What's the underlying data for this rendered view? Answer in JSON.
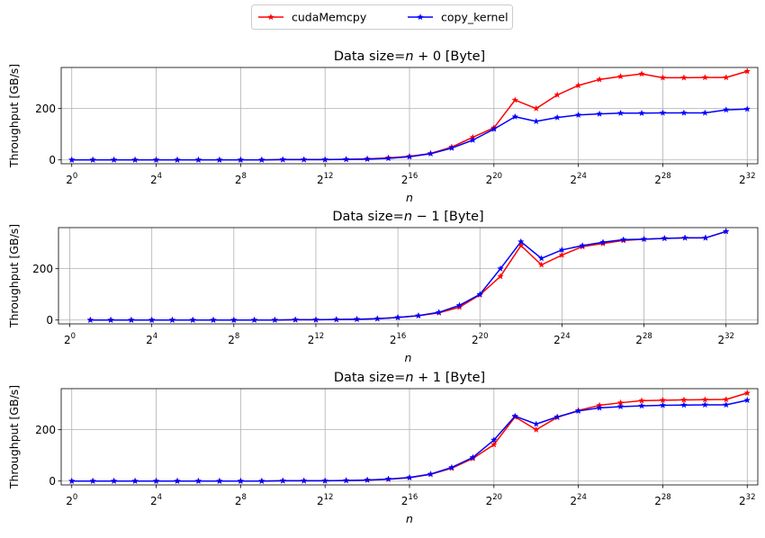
{
  "legend": {
    "placement": "top-center",
    "entries": [
      {
        "label": "cudaMemcpy",
        "color": "#ff0000",
        "marker": "star"
      },
      {
        "label": "copy_kernel",
        "color": "#0000ff",
        "marker": "star"
      }
    ]
  },
  "chart_data": [
    {
      "type": "line",
      "title": "Data size=n + 0 [Byte]",
      "title_parts": {
        "prefix": "Data size=",
        "var": "n",
        "suffix": " + 0 [Byte]"
      },
      "xlabel": "n",
      "ylabel": "Throughput [GB/s]",
      "x_scale": "log2",
      "x_exponent_range": [
        -0.5,
        32.5
      ],
      "ylim": [
        -15,
        360
      ],
      "grid": true,
      "x_tick_exponents": [
        0,
        4,
        8,
        12,
        16,
        20,
        24,
        28,
        32
      ],
      "x_tick_labels": [
        "2^0",
        "2^4",
        "2^8",
        "2^12",
        "2^16",
        "2^20",
        "2^24",
        "2^28",
        "2^32"
      ],
      "y_ticks": [
        0,
        200
      ],
      "x_exponents": [
        0,
        1,
        2,
        3,
        4,
        5,
        6,
        7,
        8,
        9,
        10,
        11,
        12,
        13,
        14,
        15,
        16,
        17,
        18,
        19,
        20,
        21,
        22,
        23,
        24,
        25,
        26,
        27,
        28,
        29,
        30,
        31,
        32
      ],
      "series": [
        {
          "name": "cudaMemcpy",
          "color": "#ff0000",
          "values": [
            0,
            0,
            0,
            0,
            0,
            0,
            0,
            0,
            0,
            0,
            1,
            1,
            1,
            2,
            4,
            8,
            14,
            25,
            50,
            88,
            125,
            233,
            200,
            253,
            290,
            313,
            325,
            335,
            320,
            320,
            321,
            321,
            345
          ]
        },
        {
          "name": "copy_kernel",
          "color": "#0000ff",
          "values": [
            0,
            0,
            0,
            0,
            0,
            0,
            0,
            0,
            0,
            0,
            1,
            1,
            1,
            2,
            3,
            6,
            12,
            24,
            46,
            77,
            120,
            168,
            150,
            165,
            175,
            179,
            182,
            182,
            183,
            183,
            183,
            195,
            198
          ]
        }
      ]
    },
    {
      "type": "line",
      "title": "Data size=n − 1 [Byte]",
      "title_parts": {
        "prefix": "Data size=",
        "var": "n",
        "suffix": " − 1 [Byte]"
      },
      "xlabel": "n",
      "ylabel": "Throughput [GB/s]",
      "x_scale": "log2",
      "x_exponent_range": [
        -0.55,
        33.55
      ],
      "ylim": [
        -15,
        360
      ],
      "grid": true,
      "x_tick_exponents": [
        0,
        4,
        8,
        12,
        16,
        20,
        24,
        28,
        32
      ],
      "x_tick_labels": [
        "2^0",
        "2^4",
        "2^8",
        "2^12",
        "2^16",
        "2^20",
        "2^24",
        "2^28",
        "2^32"
      ],
      "y_ticks": [
        0,
        200
      ],
      "x_exponents": [
        1,
        2,
        3,
        4,
        5,
        6,
        7,
        8,
        9,
        10,
        11,
        12,
        13,
        14,
        15,
        16,
        17,
        18,
        19,
        20,
        21,
        22,
        23,
        24,
        25,
        26,
        27,
        28,
        29,
        30,
        31,
        32
      ],
      "series": [
        {
          "name": "cudaMemcpy",
          "color": "#ff0000",
          "values": [
            0,
            0,
            0,
            0,
            0,
            0,
            0,
            0,
            0,
            0,
            1,
            1,
            2,
            3,
            5,
            10,
            17,
            28,
            50,
            98,
            170,
            290,
            215,
            253,
            286,
            298,
            310,
            315,
            318,
            320,
            320,
            345
          ]
        },
        {
          "name": "copy_kernel",
          "color": "#0000ff",
          "values": [
            0,
            0,
            0,
            0,
            0,
            0,
            0,
            0,
            0,
            0,
            1,
            1,
            2,
            3,
            5,
            10,
            17,
            30,
            57,
            100,
            200,
            305,
            240,
            273,
            290,
            303,
            313,
            315,
            318,
            320,
            320,
            345
          ]
        }
      ]
    },
    {
      "type": "line",
      "title": "Data size=n + 1 [Byte]",
      "title_parts": {
        "prefix": "Data size=",
        "var": "n",
        "suffix": " + 1 [Byte]"
      },
      "xlabel": "n",
      "ylabel": "Throughput [GB/s]",
      "x_scale": "log2",
      "x_exponent_range": [
        -0.5,
        32.5
      ],
      "ylim": [
        -15,
        360
      ],
      "grid": true,
      "x_tick_exponents": [
        0,
        4,
        8,
        12,
        16,
        20,
        24,
        28,
        32
      ],
      "x_tick_labels": [
        "2^0",
        "2^4",
        "2^8",
        "2^12",
        "2^16",
        "2^20",
        "2^24",
        "2^28",
        "2^32"
      ],
      "y_ticks": [
        0,
        200
      ],
      "x_exponents": [
        0,
        1,
        2,
        3,
        4,
        5,
        6,
        7,
        8,
        9,
        10,
        11,
        12,
        13,
        14,
        15,
        16,
        17,
        18,
        19,
        20,
        21,
        22,
        23,
        24,
        25,
        26,
        27,
        28,
        29,
        30,
        31,
        32
      ],
      "series": [
        {
          "name": "cudaMemcpy",
          "color": "#ff0000",
          "values": [
            0,
            0,
            0,
            0,
            0,
            0,
            0,
            0,
            0,
            0,
            1,
            1,
            1,
            2,
            4,
            7,
            13,
            26,
            50,
            88,
            142,
            250,
            200,
            248,
            275,
            295,
            305,
            313,
            315,
            316,
            317,
            318,
            343
          ]
        },
        {
          "name": "copy_kernel",
          "color": "#0000ff",
          "values": [
            0,
            0,
            0,
            0,
            0,
            0,
            0,
            0,
            0,
            0,
            1,
            1,
            1,
            2,
            4,
            8,
            14,
            27,
            53,
            92,
            160,
            253,
            222,
            250,
            273,
            285,
            290,
            293,
            295,
            296,
            297,
            297,
            315
          ]
        }
      ]
    }
  ]
}
